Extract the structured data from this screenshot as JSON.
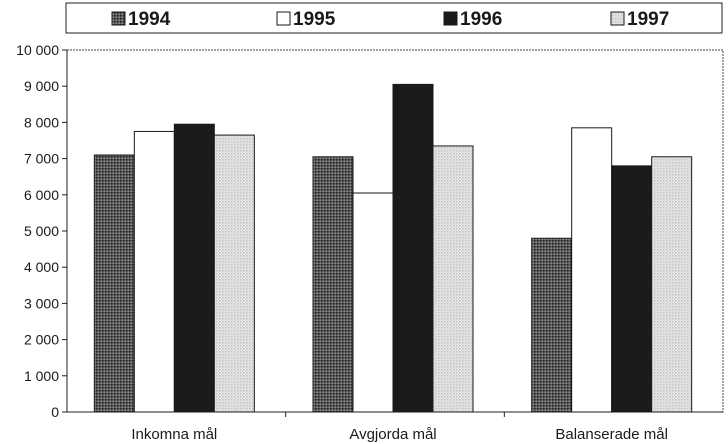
{
  "chart_data": {
    "type": "bar",
    "categories": [
      "Inkomna mål",
      "Avgjorda mål",
      "Balanserade mål"
    ],
    "series": [
      {
        "name": "1994",
        "values": [
          7100,
          7050,
          4800
        ]
      },
      {
        "name": "1995",
        "values": [
          7750,
          6050,
          7850
        ]
      },
      {
        "name": "1996",
        "values": [
          7950,
          9050,
          6800
        ]
      },
      {
        "name": "1997",
        "values": [
          7650,
          7350,
          7050
        ]
      }
    ],
    "y_ticks": [
      "0",
      "1 000",
      "2 000",
      "3 000",
      "4 000",
      "5 000",
      "6 000",
      "7 000",
      "8 000",
      "9 000",
      "10 000"
    ],
    "ylim": [
      0,
      10000
    ],
    "legend_position": "top",
    "grid": false,
    "series_fills": [
      "dark-dotted",
      "white",
      "black",
      "light-dotted"
    ]
  }
}
